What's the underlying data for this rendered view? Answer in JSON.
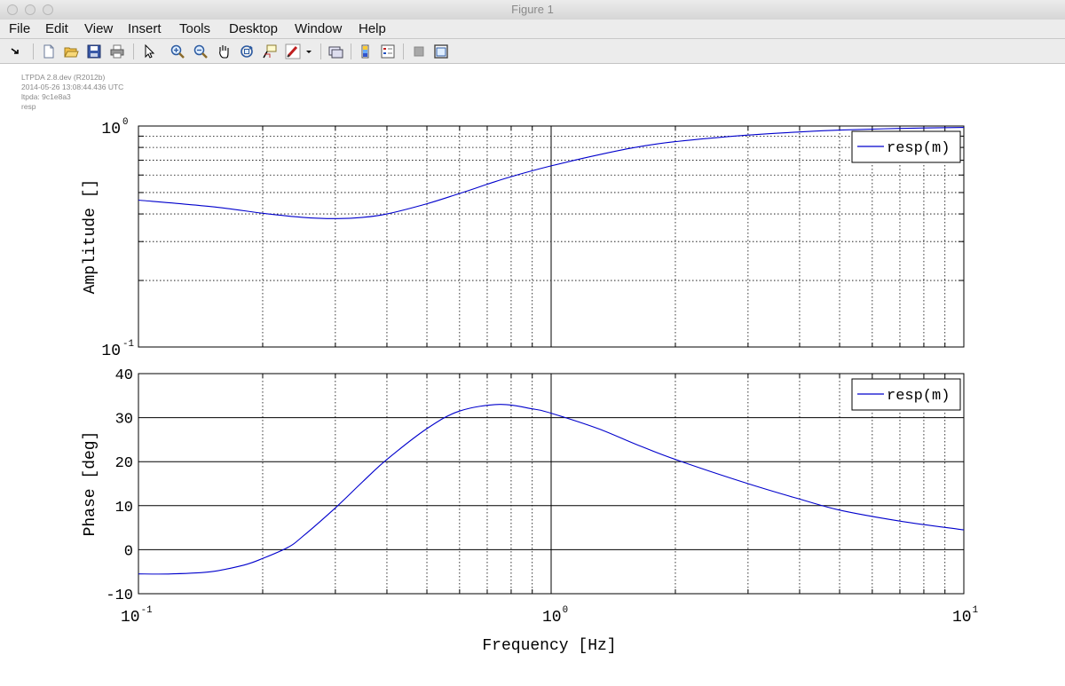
{
  "window": {
    "title": "Figure 1"
  },
  "menu": [
    "File",
    "Edit",
    "View",
    "Insert",
    "Tools",
    "Desktop",
    "Window",
    "Help"
  ],
  "toolbar": {
    "buttons": [
      {
        "name": "dock-arrow-icon"
      },
      {
        "name": "new-figure-icon"
      },
      {
        "name": "open-file-icon"
      },
      {
        "name": "save-icon"
      },
      {
        "name": "print-icon"
      },
      {
        "name": "edit-plot-arrow-icon"
      },
      {
        "name": "zoom-in-icon"
      },
      {
        "name": "zoom-out-icon"
      },
      {
        "name": "pan-hand-icon"
      },
      {
        "name": "rotate-3d-icon"
      },
      {
        "name": "data-cursor-icon"
      },
      {
        "name": "brush-icon"
      },
      {
        "name": "dropdown-arrow-icon"
      },
      {
        "name": "link-plot-icon"
      },
      {
        "name": "colorbar-icon"
      },
      {
        "name": "legend-icon"
      },
      {
        "name": "hide-plot-tools-icon"
      },
      {
        "name": "show-plot-tools-icon"
      }
    ]
  },
  "info_lines": [
    "LTPDA 2.8.dev (R2012b)",
    "2014-05-26 13:08:44.436 UTC",
    "ltpda: 9c1e8a3",
    "resp"
  ],
  "colors": {
    "series": "#0000cc",
    "axes": "#000000",
    "grid": "#000000"
  },
  "chart_data": [
    {
      "type": "line",
      "xscale": "log",
      "yscale": "log",
      "xlim": [
        0.1,
        10
      ],
      "ylim": [
        0.1,
        1
      ],
      "ylabel": "Amplitude  []",
      "ytick_labels": [
        {
          "base": "10",
          "exp": "0"
        },
        {
          "base": "10",
          "exp": "-1"
        }
      ],
      "grid": true,
      "legend": {
        "entries": [
          "resp(m)"
        ],
        "placement": "top-right"
      },
      "series": [
        {
          "name": "resp(m)",
          "x": [
            0.1,
            0.15,
            0.2,
            0.25,
            0.3,
            0.35,
            0.4,
            0.5,
            0.6,
            0.7,
            0.8,
            1.0,
            1.3,
            1.6,
            2.0,
            3.0,
            4.0,
            5.0,
            7.0,
            10.0
          ],
          "y": [
            0.462,
            0.432,
            0.403,
            0.386,
            0.381,
            0.386,
            0.4,
            0.445,
            0.495,
            0.545,
            0.59,
            0.66,
            0.74,
            0.8,
            0.85,
            0.91,
            0.94,
            0.958,
            0.975,
            0.985
          ]
        }
      ]
    },
    {
      "type": "line",
      "xscale": "log",
      "yscale": "linear",
      "xlim": [
        0.1,
        10
      ],
      "ylim": [
        -10,
        40
      ],
      "ylabel": "Phase  [deg]",
      "xlabel": "Frequency  [Hz]",
      "yticks": [
        40,
        30,
        20,
        10,
        0,
        -10
      ],
      "ytick_labels": [
        "40",
        "30",
        "20",
        "10",
        "0",
        "-10"
      ],
      "xtick_labels": [
        {
          "base": "10",
          "exp": "-1"
        },
        {
          "base": "10",
          "exp": "0"
        },
        {
          "base": "10",
          "exp": "1"
        }
      ],
      "grid": true,
      "legend": {
        "entries": [
          "resp(m)"
        ],
        "placement": "top-right"
      },
      "series": [
        {
          "name": "resp(m)",
          "x": [
            0.1,
            0.12,
            0.15,
            0.18,
            0.2,
            0.23,
            0.25,
            0.3,
            0.35,
            0.4,
            0.5,
            0.6,
            0.75,
            0.9,
            1.0,
            1.3,
            1.6,
            2.0,
            3.0,
            4.0,
            5.0,
            7.0,
            10.0
          ],
          "y": [
            -5.5,
            -5.5,
            -5.0,
            -3.5,
            -2.0,
            0.5,
            3.0,
            9.5,
            15.5,
            20.5,
            27.5,
            31.5,
            33.0,
            32.0,
            31.0,
            27.5,
            24.0,
            20.5,
            15.0,
            11.5,
            9.0,
            6.5,
            4.5
          ]
        }
      ]
    }
  ]
}
